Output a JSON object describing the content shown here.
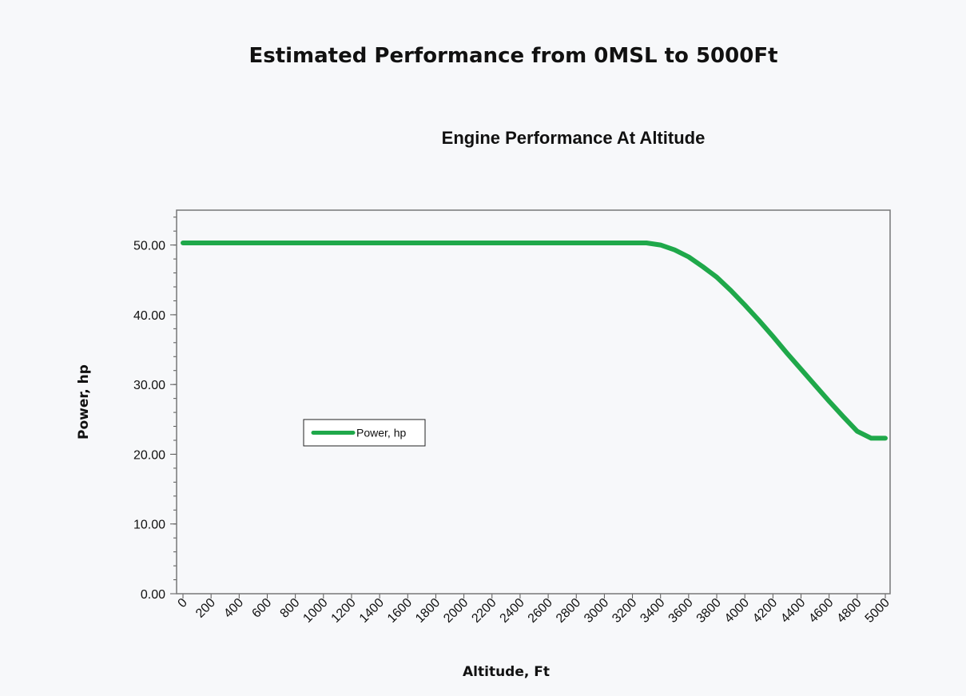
{
  "header": {
    "title": "Estimated Performance from 0MSL to 5000Ft"
  },
  "chart_data": {
    "type": "line",
    "title": "Engine Performance At Altitude",
    "xlabel": "Altitude, Ft",
    "ylabel": "Power, hp",
    "xlim": [
      0,
      5000
    ],
    "ylim": [
      0,
      55
    ],
    "x_ticks": [
      "0",
      "200",
      "400",
      "600",
      "800",
      "1000",
      "1200",
      "1400",
      "1600",
      "1800",
      "2000",
      "2200",
      "2400",
      "2600",
      "2800",
      "3000",
      "3200",
      "3400",
      "3600",
      "3800",
      "4000",
      "4200",
      "4400",
      "4600",
      "4800",
      "5000"
    ],
    "y_ticks": [
      "0.00",
      "10.00",
      "20.00",
      "30.00",
      "40.00",
      "50.00"
    ],
    "y_tick_values": [
      0,
      10,
      20,
      30,
      40,
      50
    ],
    "grid": false,
    "legend_position": "left-middle",
    "series": [
      {
        "name": "Power, hp",
        "color": "#1fa84a",
        "x": [
          0,
          200,
          400,
          600,
          800,
          1000,
          1200,
          1400,
          1600,
          1800,
          2000,
          2200,
          2400,
          2600,
          2800,
          3000,
          3200,
          3300,
          3400,
          3500,
          3600,
          3700,
          3800,
          3900,
          4000,
          4100,
          4200,
          4300,
          4400,
          4500,
          4600,
          4700,
          4800,
          4900,
          5000
        ],
        "values": [
          50.3,
          50.3,
          50.3,
          50.3,
          50.3,
          50.3,
          50.3,
          50.3,
          50.3,
          50.3,
          50.3,
          50.3,
          50.3,
          50.3,
          50.3,
          50.3,
          50.3,
          50.3,
          50.0,
          49.3,
          48.3,
          46.9,
          45.4,
          43.5,
          41.4,
          39.2,
          36.9,
          34.5,
          32.2,
          29.9,
          27.6,
          25.4,
          23.3,
          22.3,
          22.3
        ]
      }
    ]
  }
}
